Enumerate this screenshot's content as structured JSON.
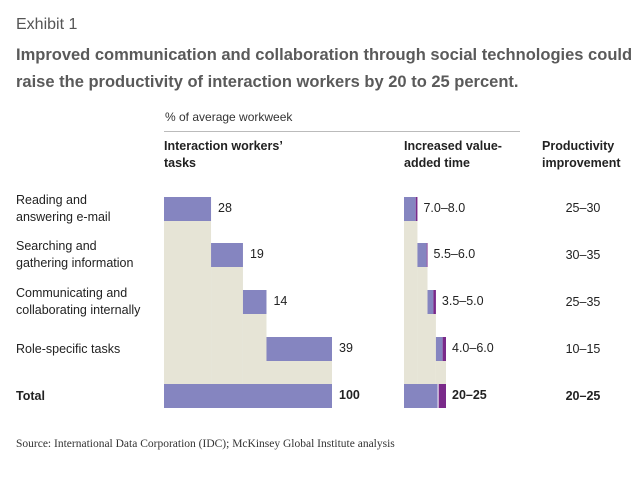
{
  "exhibit_label": "Exhibit 1",
  "title": "Improved communication and collaboration through social technologies could raise the productivity of interaction workers by 20 to 25 percent.",
  "source": "Source: International Data Corporation (IDC); McKinsey Global Institute analysis",
  "colors": {
    "bar": "#8585c0",
    "bar_dark": "#7a2a8a",
    "base": "#e6e4d6"
  },
  "chart_data": {
    "type": "bar",
    "unit_label": "% of average workweek",
    "headers": {
      "tasks": "Interaction workers’ tasks",
      "time": "Increased value-added time",
      "productivity": "Productivity improvement"
    },
    "categories": [
      "Reading and answering e-mail",
      "Searching and gathering information",
      "Communicating and collaborating internally",
      "Role-specific tasks"
    ],
    "total_label": "Total",
    "tasks_values": [
      28,
      19,
      14,
      39
    ],
    "tasks_labels": [
      "28",
      "19",
      "14",
      "39"
    ],
    "tasks_total": "100",
    "time_ranges": [
      [
        7.0,
        8.0
      ],
      [
        5.5,
        6.0
      ],
      [
        3.5,
        5.0
      ],
      [
        4.0,
        6.0
      ]
    ],
    "time_labels": [
      "7.0–8.0",
      "5.5–6.0",
      "3.5–5.0",
      "4.0–6.0"
    ],
    "time_total_range": [
      20,
      25
    ],
    "time_total": "20–25",
    "productivity_labels": [
      "25–30",
      "30–35",
      "25–35",
      "10–15"
    ],
    "productivity_total": "20–25"
  }
}
